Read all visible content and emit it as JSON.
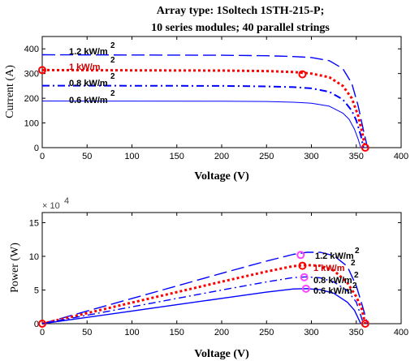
{
  "figure": {
    "title_line1": "Array type: 1Soltech 1STH-215-P;",
    "title_line2": "10 series modules; 40 parallel strings"
  },
  "chart_data": [
    {
      "type": "line",
      "title": "",
      "xlabel": "Voltage (V)",
      "ylabel": "Current (A)",
      "xlim": [
        0,
        400
      ],
      "ylim": [
        0,
        450
      ],
      "xticks": [
        "0",
        "50",
        "100",
        "150",
        "200",
        "250",
        "300",
        "350",
        "400"
      ],
      "yticks": [
        "0",
        "100",
        "200",
        "300",
        "400"
      ],
      "grid": false,
      "series": [
        {
          "name": "1.2 kW/m2",
          "label": "1.2 kW/m",
          "sup": "2",
          "color": "#0000ff",
          "dash": "16,6",
          "width": 1.4,
          "x": [
            0,
            100,
            200,
            250,
            280,
            300,
            320,
            335,
            345,
            352,
            358,
            362.5
          ],
          "y": [
            376,
            375,
            374,
            372,
            369,
            365,
            352,
            320,
            260,
            170,
            70,
            0
          ]
        },
        {
          "name": "1 kW/m2",
          "label": "1 kW/m",
          "sup": "2",
          "color": "#ff0000",
          "dash": "3,3",
          "width": 3,
          "x": [
            0,
            100,
            200,
            250,
            280,
            300,
            320,
            335,
            345,
            352,
            357,
            360
          ],
          "y": [
            314,
            313,
            312,
            310,
            306,
            300,
            285,
            250,
            200,
            130,
            55,
            0
          ]
        },
        {
          "name": "0.8 kW/m2",
          "label": "0.8 kW/m",
          "sup": "2",
          "color": "#0000ff",
          "dash": "9,4,2,4",
          "width": 2,
          "x": [
            0,
            100,
            200,
            250,
            280,
            300,
            320,
            335,
            345,
            350,
            355,
            358
          ],
          "y": [
            251,
            250.5,
            250,
            248,
            245,
            240,
            226,
            195,
            150,
            110,
            50,
            0
          ]
        },
        {
          "name": "0.6 kW/m2",
          "label": "0.6 kW/m",
          "sup": "2",
          "color": "#0000ff",
          "dash": "",
          "width": 1,
          "x": [
            0,
            100,
            200,
            250,
            280,
            300,
            320,
            335,
            342,
            348,
            352,
            355
          ],
          "y": [
            189,
            188.5,
            188,
            187,
            184,
            180,
            168,
            140,
            115,
            75,
            35,
            0
          ]
        }
      ],
      "markers": [
        {
          "x": 0,
          "y": 314,
          "color": "#ff0000"
        },
        {
          "x": 290,
          "y": 297,
          "color": "#ff0000"
        },
        {
          "x": 360,
          "y": 0,
          "color": "#ff0000"
        }
      ]
    },
    {
      "type": "line",
      "title": "",
      "xlabel": "Voltage (V)",
      "ylabel": "Power (W)",
      "multiplier": "× 10",
      "multiplier_exp": "4",
      "xlim": [
        0,
        400
      ],
      "ylim": [
        0,
        16.5
      ],
      "xticks": [
        "0",
        "50",
        "100",
        "150",
        "200",
        "250",
        "300",
        "350",
        "400"
      ],
      "yticks": [
        "0",
        "5",
        "10",
        "15"
      ],
      "grid": false,
      "series": [
        {
          "name": "1.2 kW/m2",
          "label": "1.2 kW/m",
          "sup": "2",
          "color": "#0000ff",
          "dash": "16,6",
          "width": 1.4,
          "x": [
            0,
            50,
            100,
            150,
            200,
            250,
            280,
            295,
            310,
            325,
            340,
            350,
            356,
            362.5
          ],
          "y": [
            0,
            1.88,
            3.75,
            5.6,
            7.48,
            9.3,
            10.3,
            10.6,
            10.6,
            10.1,
            8.5,
            5.6,
            3.0,
            0
          ]
        },
        {
          "name": "1 kW/m2",
          "label": "1 kW/m",
          "sup": "2",
          "color": "#ff0000",
          "dash": "3,3",
          "width": 3,
          "x": [
            0,
            50,
            100,
            150,
            200,
            250,
            280,
            295,
            310,
            325,
            340,
            350,
            356,
            360
          ],
          "y": [
            0,
            1.57,
            3.13,
            4.69,
            6.24,
            7.75,
            8.55,
            8.7,
            8.6,
            7.9,
            6.1,
            4.0,
            2.2,
            0
          ]
        },
        {
          "name": "0.8 kW/m2",
          "label": "0.8 kW/m",
          "sup": "2",
          "color": "#0000ff",
          "dash": "9,4,2,4",
          "width": 1.4,
          "x": [
            0,
            50,
            100,
            150,
            200,
            250,
            280,
            295,
            310,
            325,
            340,
            350,
            358
          ],
          "y": [
            0,
            1.25,
            2.5,
            3.75,
            5.0,
            6.2,
            6.85,
            6.95,
            6.8,
            6.2,
            4.9,
            3.2,
            0
          ]
        },
        {
          "name": "0.6 kW/m2",
          "label": "0.6 kW/m",
          "sup": "2",
          "color": "#0000ff",
          "dash": "",
          "width": 1.4,
          "x": [
            0,
            50,
            100,
            150,
            200,
            250,
            280,
            295,
            310,
            325,
            340,
            348,
            355
          ],
          "y": [
            0,
            0.94,
            1.88,
            2.82,
            3.76,
            4.68,
            5.15,
            5.2,
            5.05,
            4.5,
            3.2,
            2.0,
            0
          ]
        }
      ],
      "markers": [
        {
          "x": 288,
          "y": 10.2,
          "color": "#ff44ff"
        },
        {
          "x": 290,
          "y": 8.6,
          "color": "#ff0000"
        },
        {
          "x": 292,
          "y": 6.9,
          "color": "#ff44ff"
        },
        {
          "x": 294,
          "y": 5.2,
          "color": "#ff44ff"
        },
        {
          "x": 0,
          "y": 0,
          "color": "#ff0000"
        },
        {
          "x": 360,
          "y": 0,
          "color": "#ff0000"
        }
      ]
    }
  ]
}
